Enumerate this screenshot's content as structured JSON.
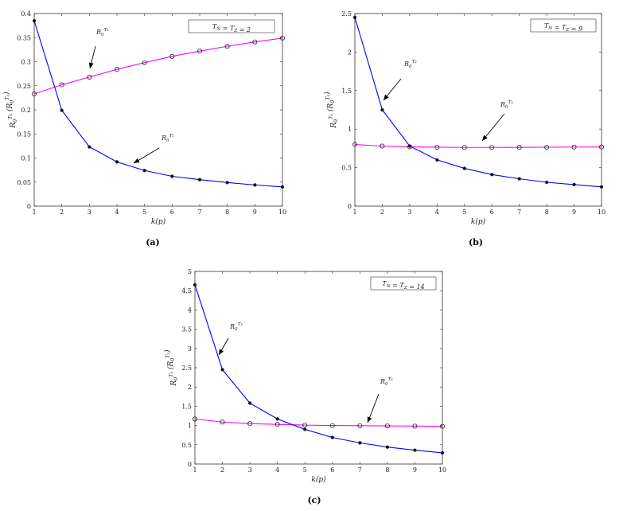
{
  "chart_data": [
    {
      "type": "line",
      "panel_label": "(a)",
      "xlabel": "k(p)",
      "ylabel": "R0^{Tx} (R0^{Tz})",
      "x": [
        1,
        2,
        3,
        4,
        5,
        6,
        7,
        8,
        9,
        10
      ],
      "xlim": [
        1,
        10
      ],
      "ylim": [
        0,
        0.4
      ],
      "xticks": [
        "1",
        "2",
        "3",
        "4",
        "5",
        "6",
        "7",
        "8",
        "9",
        "10"
      ],
      "yticks": [
        "0",
        "0.05",
        "0.1",
        "0.15",
        "0.2",
        "0.25",
        "0.3",
        "0.35",
        "0.4"
      ],
      "ytick_values": [
        0,
        0.05,
        0.1,
        0.15,
        0.2,
        0.25,
        0.3,
        0.35,
        0.4
      ],
      "box_text": "T_N = T_Z = 2",
      "series": [
        {
          "name": "R0^{Tx}",
          "color": "#ff00ff",
          "marker": "open-circle",
          "values": [
            0.233,
            0.252,
            0.268,
            0.284,
            0.298,
            0.311,
            0.322,
            0.332,
            0.341,
            0.349
          ]
        },
        {
          "name": "R0^{Tz}",
          "color": "#0000ff",
          "marker": "dot",
          "values": [
            0.385,
            0.199,
            0.123,
            0.092,
            0.074,
            0.062,
            0.055,
            0.049,
            0.044,
            0.04
          ]
        }
      ]
    },
    {
      "type": "line",
      "panel_label": "(b)",
      "xlabel": "k(p)",
      "ylabel": "R0^{Tx} (R0^{Tz})",
      "x": [
        1,
        2,
        3,
        4,
        5,
        6,
        7,
        8,
        9,
        10
      ],
      "xlim": [
        1,
        10
      ],
      "ylim": [
        0,
        2.5
      ],
      "xticks": [
        "1",
        "2",
        "3",
        "4",
        "5",
        "6",
        "7",
        "8",
        "9",
        "10"
      ],
      "yticks": [
        "0",
        "0.5",
        "1",
        "1.5",
        "2",
        "2.5"
      ],
      "ytick_values": [
        0,
        0.5,
        1,
        1.5,
        2,
        2.5
      ],
      "box_text": "T_N = T_Z = 9",
      "series": [
        {
          "name": "R0^{Tx}",
          "color": "#ff00ff",
          "marker": "open-circle",
          "values": [
            0.8,
            0.78,
            0.77,
            0.765,
            0.762,
            0.762,
            0.763,
            0.765,
            0.767,
            0.768
          ]
        },
        {
          "name": "R0^{Tz}",
          "color": "#0000ff",
          "marker": "dot",
          "values": [
            2.45,
            1.25,
            0.78,
            0.6,
            0.49,
            0.41,
            0.355,
            0.31,
            0.28,
            0.25
          ]
        }
      ]
    },
    {
      "type": "line",
      "panel_label": "(c)",
      "xlabel": "k(p)",
      "ylabel": "R0^{Tx} (R0^{Tz})",
      "x": [
        1,
        2,
        3,
        4,
        5,
        6,
        7,
        8,
        9,
        10
      ],
      "xlim": [
        1,
        10
      ],
      "ylim": [
        0,
        5
      ],
      "xticks": [
        "1",
        "2",
        "3",
        "4",
        "5",
        "6",
        "7",
        "8",
        "9",
        "10"
      ],
      "yticks": [
        "0",
        "0.5",
        "1",
        "1.5",
        "2",
        "2.5",
        "3",
        "3.5",
        "4",
        "4.5",
        "5"
      ],
      "ytick_values": [
        0,
        0.5,
        1,
        1.5,
        2,
        2.5,
        3,
        3.5,
        4,
        4.5,
        5
      ],
      "box_text": "T_N = T_Z = 14",
      "series": [
        {
          "name": "R0^{Tx}",
          "color": "#ff00ff",
          "marker": "open-circle",
          "values": [
            1.17,
            1.09,
            1.05,
            1.03,
            1.01,
            1.0,
            0.995,
            0.99,
            0.985,
            0.98
          ]
        },
        {
          "name": "R0^{Tz}",
          "color": "#0000ff",
          "marker": "dot",
          "values": [
            4.65,
            2.45,
            1.58,
            1.17,
            0.9,
            0.69,
            0.55,
            0.44,
            0.36,
            0.29
          ]
        }
      ]
    }
  ]
}
